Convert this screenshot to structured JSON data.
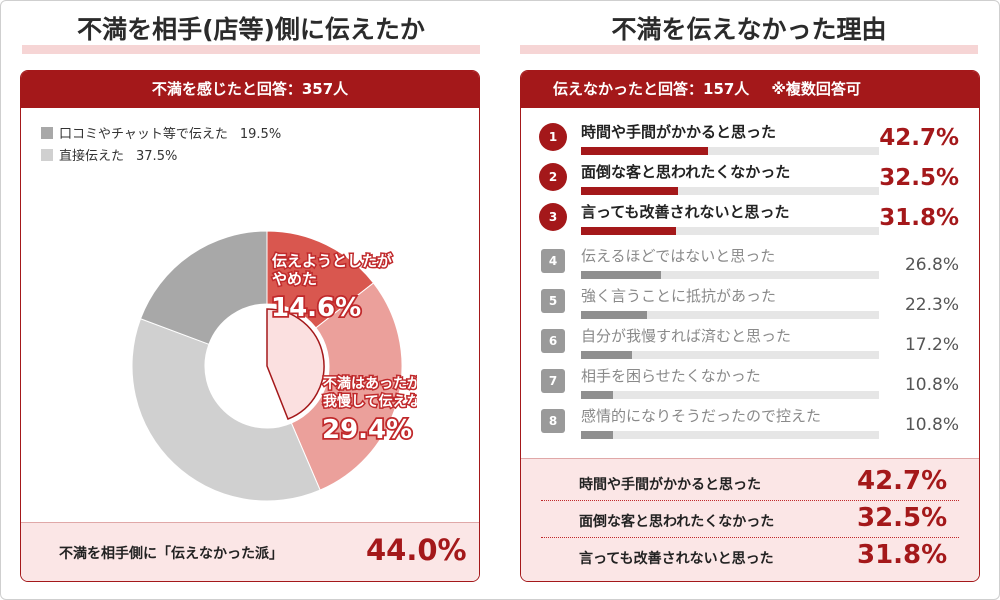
{
  "left": {
    "heading": "不満を相手(店等)側に伝えたか",
    "panel_header": "不満を感じたと回答：357人",
    "legend": [
      {
        "label": "口コミやチャット等で伝えた",
        "value": "19.5%",
        "color": "#a8a8a8"
      },
      {
        "label": "直接伝えた",
        "value": "37.5%",
        "color": "#d0d0d0"
      }
    ],
    "callouts": {
      "gave_up_label1": "伝えようとしたが",
      "gave_up_label2": "やめた",
      "gave_up_pct": "14.6%",
      "not_told_label1": "不満はあったが",
      "not_told_label2": "我慢して伝えなかった",
      "not_told_pct": "29.4%"
    },
    "footer_label": "不満を相手側に「伝えなかった派」",
    "footer_value": "44.0%"
  },
  "right": {
    "heading": "不満を伝えなかった理由",
    "panel_header": "伝えなかったと回答：157人",
    "panel_note": "※複数回答可",
    "reasons": [
      {
        "rank": "1",
        "label": "時間や手間がかかると思った",
        "pct": "42.7%"
      },
      {
        "rank": "2",
        "label": "面倒な客と思われたくなかった",
        "pct": "32.5%"
      },
      {
        "rank": "3",
        "label": "言っても改善されないと思った",
        "pct": "31.8%"
      },
      {
        "rank": "4",
        "label": "伝えるほどではないと思った",
        "pct": "26.8%"
      },
      {
        "rank": "5",
        "label": "強く言うことに抵抗があった",
        "pct": "22.3%"
      },
      {
        "rank": "6",
        "label": "自分が我慢すれば済むと思った",
        "pct": "17.2%"
      },
      {
        "rank": "7",
        "label": "相手を困らせたくなかった",
        "pct": "10.8%"
      },
      {
        "rank": "8",
        "label": "感情的になりそうだったので控えた",
        "pct": "10.8%"
      }
    ],
    "summary": [
      {
        "label": "時間や手間がかかると思った",
        "pct": "42.7%"
      },
      {
        "label": "面倒な客と思われたくなかった",
        "pct": "32.5%"
      },
      {
        "label": "言っても改善されないと思った",
        "pct": "31.8%"
      }
    ]
  },
  "colors": {
    "accent": "#a4181a",
    "gave_up": "#d9574f",
    "not_told": "#eba09b",
    "inner": "#fbe0e0",
    "chat": "#a8a8a8",
    "direct": "#d0d0d0"
  },
  "chart_data": [
    {
      "type": "pie",
      "categories": [
        "伝えようとしたがやめた",
        "不満はあったが我慢して伝えなかった",
        "直接伝えた",
        "口コミやチャット等で伝えた"
      ],
      "values": [
        14.6,
        29.4,
        37.5,
        19.5
      ],
      "highlight": {
        "label": "伝えなかった派",
        "value": 44.0
      }
    },
    {
      "type": "bar",
      "categories": [
        "時間や手間がかかると思った",
        "面倒な客と思われたくなかった",
        "言っても改善されないと思った",
        "伝えるほどではないと思った",
        "強く言うことに抵抗があった",
        "自分が我慢すれば済むと思った",
        "相手を困らせたくなかった",
        "感情的になりそうだったので控えた"
      ],
      "values": [
        42.7,
        32.5,
        31.8,
        26.8,
        22.3,
        17.2,
        10.8,
        10.8
      ],
      "xlim": [
        0,
        100
      ]
    }
  ]
}
